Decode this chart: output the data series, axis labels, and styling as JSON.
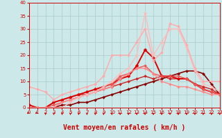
{
  "bg_color": "#cce8e8",
  "grid_color": "#aacccc",
  "xlabel": "Vent moyen/en rafales ( km/h )",
  "xlim": [
    0,
    23
  ],
  "ylim": [
    0,
    40
  ],
  "yticks": [
    0,
    5,
    10,
    15,
    20,
    25,
    30,
    35,
    40
  ],
  "xticks": [
    0,
    1,
    2,
    3,
    4,
    5,
    6,
    7,
    8,
    9,
    10,
    11,
    12,
    13,
    14,
    15,
    16,
    17,
    18,
    19,
    20,
    21,
    22,
    23
  ],
  "lines": [
    {
      "x": [
        0,
        1,
        2,
        3,
        4,
        5,
        6,
        7,
        8,
        9,
        10,
        11,
        12,
        13,
        14,
        15,
        16,
        17,
        18,
        19,
        20,
        21,
        22,
        23
      ],
      "y": [
        0,
        0,
        0,
        0,
        1,
        1,
        2,
        2,
        3,
        4,
        5,
        6,
        7,
        8,
        9,
        10,
        11,
        12,
        13,
        14,
        14,
        13,
        9,
        5
      ],
      "color": "#880000",
      "lw": 1.2,
      "marker": "D",
      "ms": 2.0
    },
    {
      "x": [
        0,
        1,
        2,
        3,
        4,
        5,
        6,
        7,
        8,
        9,
        10,
        11,
        12,
        13,
        14,
        15,
        16,
        17,
        18,
        19,
        20,
        21,
        22,
        23
      ],
      "y": [
        0,
        0,
        0,
        2,
        3,
        4,
        5,
        5,
        6,
        7,
        8,
        9,
        10,
        11,
        12,
        11,
        12,
        11,
        11,
        11,
        9,
        8,
        7,
        5
      ],
      "color": "#cc2222",
      "lw": 1.0,
      "marker": "D",
      "ms": 2.0
    },
    {
      "x": [
        0,
        1,
        2,
        3,
        4,
        5,
        6,
        7,
        8,
        9,
        10,
        11,
        12,
        13,
        14,
        15,
        16,
        17,
        18,
        19,
        20,
        21,
        22,
        23
      ],
      "y": [
        1,
        0,
        0,
        2,
        3,
        4,
        5,
        6,
        7,
        8,
        9,
        11,
        12,
        16,
        22,
        19,
        12,
        12,
        11,
        11,
        9,
        7,
        6,
        5
      ],
      "color": "#dd0000",
      "lw": 1.4,
      "marker": "D",
      "ms": 2.5
    },
    {
      "x": [
        0,
        1,
        2,
        3,
        4,
        5,
        6,
        7,
        8,
        9,
        10,
        11,
        12,
        13,
        14,
        15,
        16,
        17,
        18,
        19,
        20,
        21,
        22,
        23
      ],
      "y": [
        8,
        7,
        6,
        3,
        5,
        6,
        7,
        8,
        9,
        12,
        20,
        20,
        20,
        25,
        30,
        18,
        21,
        32,
        31,
        24,
        15,
        10,
        10,
        10
      ],
      "color": "#ffaaaa",
      "lw": 1.0,
      "marker": "D",
      "ms": 2.0
    },
    {
      "x": [
        0,
        1,
        2,
        3,
        4,
        5,
        6,
        7,
        8,
        9,
        10,
        11,
        12,
        13,
        14,
        15,
        16,
        17,
        18,
        19,
        20,
        21,
        22,
        23
      ],
      "y": [
        0,
        0,
        0,
        1,
        2,
        3,
        4,
        5,
        6,
        8,
        9,
        12,
        13,
        15,
        16,
        13,
        12,
        12,
        12,
        11,
        9,
        7,
        6,
        5
      ],
      "color": "#ee5555",
      "lw": 1.0,
      "marker": "D",
      "ms": 2.0
    },
    {
      "x": [
        0,
        1,
        2,
        3,
        4,
        5,
        6,
        7,
        8,
        9,
        10,
        11,
        12,
        13,
        14,
        15,
        16,
        17,
        18,
        19,
        20,
        21,
        22,
        23
      ],
      "y": [
        0,
        0,
        0,
        0,
        2,
        3,
        4,
        5,
        6,
        7,
        8,
        11,
        13,
        15,
        15,
        13,
        10,
        9,
        8,
        8,
        7,
        6,
        5,
        5
      ],
      "color": "#ff8888",
      "lw": 1.0,
      "marker": "D",
      "ms": 2.0
    },
    {
      "x": [
        0,
        1,
        2,
        3,
        4,
        5,
        6,
        7,
        8,
        9,
        10,
        11,
        12,
        13,
        14,
        15,
        16,
        17,
        18,
        19,
        20,
        21,
        22,
        23
      ],
      "y": [
        0,
        0,
        0,
        0,
        0,
        2,
        4,
        5,
        6,
        8,
        10,
        13,
        15,
        20,
        36,
        20,
        25,
        30,
        30,
        23,
        14,
        9,
        8,
        6
      ],
      "color": "#ffbbbb",
      "lw": 1.0,
      "marker": "*",
      "ms": 3.5
    }
  ],
  "arrow_color": "#cc0000",
  "xlabel_color": "#cc0000",
  "xlabel_fontsize": 7,
  "tick_color": "#cc0000",
  "tick_fontsize": 5,
  "ytick_fontsize": 5
}
